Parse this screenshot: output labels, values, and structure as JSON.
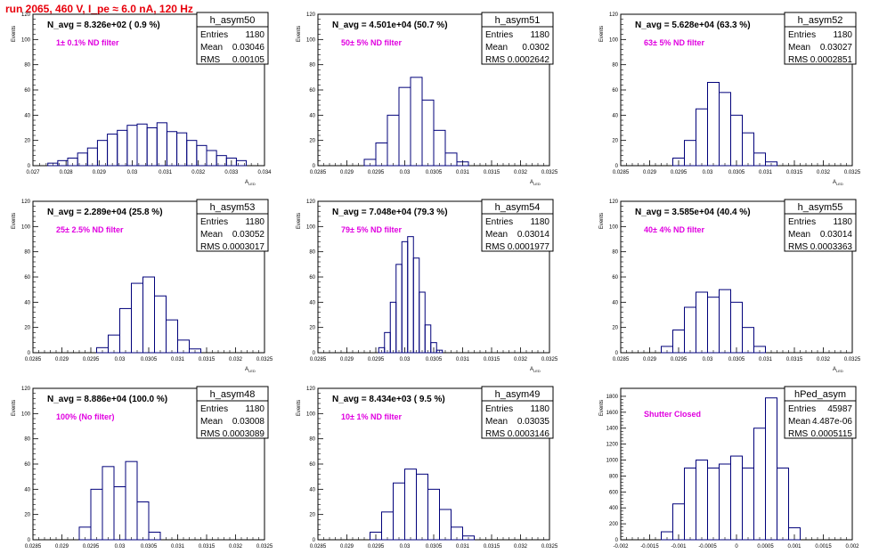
{
  "header": {
    "run_title": "run 2065,   460 V, I_pe ≈ 6.0 nA, 120 Hz"
  },
  "style": {
    "hist_color": "#00007a",
    "title_color": "#e8000b",
    "annotation_color": "#e000e0"
  },
  "chart_data": [
    {
      "type": "histogram",
      "name": "h_asym50",
      "n_avg": "N_avg = 8.326e+02 ( 0.9 %)",
      "filter": "1± 0.1% ND filter",
      "stats": {
        "entries": "1180",
        "mean": "0.03046",
        "rms": "0.00105"
      },
      "ylabel": "Events",
      "xlabel": "A",
      "xlim": [
        0.027,
        0.034
      ],
      "ylim": [
        0,
        120
      ],
      "xticks": [
        "0.027",
        "0.028",
        "0.029",
        "0.03",
        "0.031",
        "0.032",
        "0.033",
        "0.034"
      ],
      "xtick_values": [
        0.027,
        0.028,
        0.029,
        0.03,
        0.031,
        0.032,
        0.033,
        0.034
      ],
      "yticks": [
        0,
        20,
        40,
        60,
        80,
        100,
        120
      ],
      "x": [
        0.0276,
        0.0279,
        0.0282,
        0.0285,
        0.0288,
        0.0291,
        0.0294,
        0.0297,
        0.03,
        0.0303,
        0.0306,
        0.0309,
        0.0312,
        0.0315,
        0.0318,
        0.0321,
        0.0324,
        0.0327,
        0.033,
        0.0333
      ],
      "values": [
        2,
        4,
        6,
        10,
        14,
        20,
        25,
        28,
        32,
        33,
        30,
        34,
        27,
        26,
        20,
        16,
        12,
        8,
        6,
        4
      ]
    },
    {
      "type": "histogram",
      "name": "h_asym51",
      "n_avg": "N_avg = 4.501e+04 (50.7 %)",
      "filter": "50± 5% ND filter",
      "stats": {
        "entries": "1180",
        "mean": "0.0302",
        "rms": "0.0002642"
      },
      "ylabel": "Events",
      "xlabel": "A",
      "xlim": [
        0.0285,
        0.0325
      ],
      "ylim": [
        0,
        120
      ],
      "xticks": [
        "0.0285",
        "0.029",
        "0.0295",
        "0.03",
        "0.0305",
        "0.031",
        "0.0315",
        "0.032",
        "0.0325"
      ],
      "xtick_values": [
        0.0285,
        0.029,
        0.0295,
        0.03,
        0.0305,
        0.031,
        0.0315,
        0.032,
        0.0325
      ],
      "yticks": [
        0,
        20,
        40,
        60,
        80,
        100,
        120
      ],
      "x": [
        0.0294,
        0.0296,
        0.0298,
        0.03,
        0.0302,
        0.0304,
        0.0306,
        0.0308,
        0.031
      ],
      "values": [
        5,
        18,
        40,
        62,
        70,
        52,
        28,
        10,
        3
      ]
    },
    {
      "type": "histogram",
      "name": "h_asym52",
      "n_avg": "N_avg = 5.628e+04 (63.3 %)",
      "filter": "63± 5% ND filter",
      "stats": {
        "entries": "1180",
        "mean": "0.03027",
        "rms": "0.0002851"
      },
      "ylabel": "Events",
      "xlabel": "A",
      "xlim": [
        0.0285,
        0.0325
      ],
      "ylim": [
        0,
        120
      ],
      "xticks": [
        "0.0285",
        "0.029",
        "0.0295",
        "0.03",
        "0.0305",
        "0.031",
        "0.0315",
        "0.032",
        "0.0325"
      ],
      "xtick_values": [
        0.0285,
        0.029,
        0.0295,
        0.03,
        0.0305,
        0.031,
        0.0315,
        0.032,
        0.0325
      ],
      "yticks": [
        0,
        20,
        40,
        60,
        80,
        100,
        120
      ],
      "x": [
        0.0295,
        0.0297,
        0.0299,
        0.0301,
        0.0303,
        0.0305,
        0.0307,
        0.0309,
        0.0311
      ],
      "values": [
        6,
        20,
        45,
        66,
        58,
        40,
        26,
        10,
        3
      ]
    },
    {
      "type": "histogram",
      "name": "h_asym53",
      "n_avg": "N_avg = 2.289e+04 (25.8 %)",
      "filter": "25± 2.5% ND filter",
      "stats": {
        "entries": "1180",
        "mean": "0.03052",
        "rms": "0.0003017"
      },
      "ylabel": "Events",
      "xlabel": "A",
      "xlim": [
        0.0285,
        0.0325
      ],
      "ylim": [
        0,
        120
      ],
      "xticks": [
        "0.0285",
        "0.029",
        "0.0295",
        "0.03",
        "0.0305",
        "0.031",
        "0.0315",
        "0.032",
        "0.0325"
      ],
      "xtick_values": [
        0.0285,
        0.029,
        0.0295,
        0.03,
        0.0305,
        0.031,
        0.0315,
        0.032,
        0.0325
      ],
      "yticks": [
        0,
        20,
        40,
        60,
        80,
        100,
        120
      ],
      "x": [
        0.0297,
        0.0299,
        0.0301,
        0.0303,
        0.0305,
        0.0307,
        0.0309,
        0.0311,
        0.0313
      ],
      "values": [
        4,
        14,
        35,
        55,
        60,
        45,
        26,
        10,
        3
      ]
    },
    {
      "type": "histogram",
      "name": "h_asym54",
      "n_avg": "N_avg = 7.048e+04 (79.3 %)",
      "filter": "79± 5% ND filter",
      "stats": {
        "entries": "1180",
        "mean": "0.03014",
        "rms": "0.0001977"
      },
      "ylabel": "Events",
      "xlabel": "A",
      "xlim": [
        0.0285,
        0.0325
      ],
      "ylim": [
        0,
        120
      ],
      "xticks": [
        "0.0285",
        "0.029",
        "0.0295",
        "0.03",
        "0.0305",
        "0.031",
        "0.0315",
        "0.032",
        "0.0325"
      ],
      "xtick_values": [
        0.0285,
        0.029,
        0.0295,
        0.03,
        0.0305,
        0.031,
        0.0315,
        0.032,
        0.0325
      ],
      "yticks": [
        0,
        20,
        40,
        60,
        80,
        100,
        120
      ],
      "x": [
        0.0296,
        0.0297,
        0.0298,
        0.0299,
        0.03,
        0.0301,
        0.0302,
        0.0303,
        0.0304,
        0.0305,
        0.0306
      ],
      "values": [
        4,
        16,
        40,
        70,
        88,
        92,
        75,
        48,
        22,
        8,
        2
      ]
    },
    {
      "type": "histogram",
      "name": "h_asym55",
      "n_avg": "N_avg = 3.585e+04 (40.4 %)",
      "filter": "40± 4% ND filter",
      "stats": {
        "entries": "1180",
        "mean": "0.03014",
        "rms": "0.0003363"
      },
      "ylabel": "Events",
      "xlabel": "A",
      "xlim": [
        0.0285,
        0.0325
      ],
      "ylim": [
        0,
        120
      ],
      "xticks": [
        "0.0285",
        "0.029",
        "0.0295",
        "0.03",
        "0.0305",
        "0.031",
        "0.0315",
        "0.032",
        "0.0325"
      ],
      "xtick_values": [
        0.0285,
        0.029,
        0.0295,
        0.03,
        0.0305,
        0.031,
        0.0315,
        0.032,
        0.0325
      ],
      "yticks": [
        0,
        20,
        40,
        60,
        80,
        100,
        120
      ],
      "x": [
        0.0293,
        0.0295,
        0.0297,
        0.0299,
        0.0301,
        0.0303,
        0.0305,
        0.0307,
        0.0309
      ],
      "values": [
        5,
        18,
        36,
        48,
        44,
        50,
        40,
        20,
        5
      ]
    },
    {
      "type": "histogram",
      "name": "h_asym48",
      "n_avg": "N_avg = 8.886e+04 (100.0 %)",
      "filter": "100% (No filter)",
      "stats": {
        "entries": "1180",
        "mean": "0.03008",
        "rms": "0.0003089"
      },
      "ylabel": "Events",
      "xlabel": "A",
      "xlim": [
        0.0285,
        0.0325
      ],
      "ylim": [
        0,
        120
      ],
      "xticks": [
        "0.0285",
        "0.029",
        "0.0295",
        "0.03",
        "0.0305",
        "0.031",
        "0.0315",
        "0.032",
        "0.0325"
      ],
      "xtick_values": [
        0.0285,
        0.029,
        0.0295,
        0.03,
        0.0305,
        0.031,
        0.0315,
        0.032,
        0.0325
      ],
      "yticks": [
        0,
        20,
        40,
        60,
        80,
        100,
        120
      ],
      "x": [
        0.0294,
        0.0296,
        0.0298,
        0.03,
        0.0302,
        0.0304,
        0.0306
      ],
      "values": [
        10,
        40,
        58,
        42,
        62,
        30,
        6
      ]
    },
    {
      "type": "histogram",
      "name": "h_asym49",
      "n_avg": "N_avg = 8.434e+03 ( 9.5 %)",
      "filter": "10± 1% ND filter",
      "stats": {
        "entries": "1180",
        "mean": "0.03035",
        "rms": "0.0003146"
      },
      "ylabel": "Events",
      "xlabel": "A",
      "xlim": [
        0.0285,
        0.0325
      ],
      "ylim": [
        0,
        120
      ],
      "xticks": [
        "0.0285",
        "0.029",
        "0.0295",
        "0.03",
        "0.0305",
        "0.031",
        "0.0315",
        "0.032",
        "0.0325"
      ],
      "xtick_values": [
        0.0285,
        0.029,
        0.0295,
        0.03,
        0.0305,
        0.031,
        0.0315,
        0.032,
        0.0325
      ],
      "yticks": [
        0,
        20,
        40,
        60,
        80,
        100,
        120
      ],
      "x": [
        0.0295,
        0.0297,
        0.0299,
        0.0301,
        0.0303,
        0.0305,
        0.0307,
        0.0309,
        0.0311
      ],
      "values": [
        6,
        22,
        45,
        56,
        52,
        40,
        24,
        10,
        3
      ]
    },
    {
      "type": "histogram",
      "name": "hPed_asym",
      "n_avg": "",
      "filter": "Shutter Closed",
      "stats": {
        "entries": "45987",
        "mean": "4.487e-06",
        "rms": "0.0005115"
      },
      "ylabel": "Events",
      "xlabel": "A",
      "xlim": [
        -0.002,
        0.002
      ],
      "ylim": [
        0,
        1900
      ],
      "xticks": [
        "-0.002",
        "-0.0015",
        "-0.001",
        "-0.0005",
        "0",
        "0.0005",
        "0.001",
        "0.0015",
        "0.002"
      ],
      "xtick_values": [
        -0.002,
        -0.0015,
        -0.001,
        -0.0005,
        0,
        0.0005,
        0.001,
        0.0015,
        0.002
      ],
      "yticks": [
        0,
        200,
        400,
        600,
        800,
        1000,
        1200,
        1400,
        1600,
        1800
      ],
      "x": [
        -0.0012,
        -0.001,
        -0.0008,
        -0.0006,
        -0.0004,
        -0.0002,
        0,
        0.0002,
        0.0004,
        0.0006,
        0.0008,
        0.001
      ],
      "values": [
        100,
        450,
        900,
        1000,
        900,
        950,
        1050,
        900,
        1400,
        1780,
        900,
        150
      ]
    }
  ]
}
